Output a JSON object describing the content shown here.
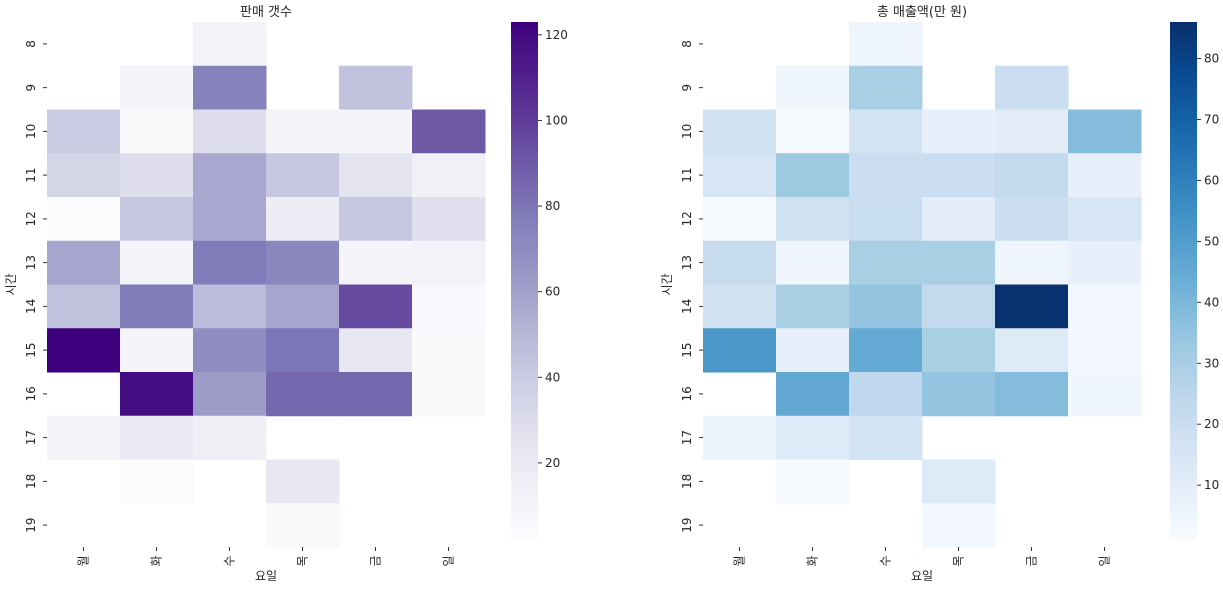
{
  "chart_data": [
    {
      "type": "heatmap",
      "title": "판매 갯수",
      "xlabel": "요일",
      "ylabel": "시간",
      "x_categories": [
        "월",
        "화",
        "수",
        "목",
        "금",
        "일"
      ],
      "y_categories": [
        "8",
        "9",
        "10",
        "11",
        "12",
        "13",
        "14",
        "15",
        "16",
        "17",
        "18",
        "19"
      ],
      "values": [
        [
          null,
          null,
          12,
          null,
          null,
          null
        ],
        [
          null,
          10,
          75,
          null,
          45,
          null
        ],
        [
          40,
          4,
          30,
          12,
          10,
          90
        ],
        [
          35,
          30,
          57,
          42,
          25,
          14
        ],
        [
          3,
          42,
          57,
          18,
          42,
          28
        ],
        [
          58,
          10,
          78,
          72,
          10,
          12
        ],
        [
          45,
          78,
          48,
          58,
          95,
          6
        ],
        [
          123,
          10,
          70,
          80,
          22,
          5
        ],
        [
          null,
          118,
          62,
          85,
          85,
          5
        ],
        [
          10,
          20,
          15,
          null,
          null,
          null
        ],
        [
          null,
          3,
          null,
          22,
          null,
          null
        ],
        [
          null,
          null,
          null,
          5,
          null,
          null
        ]
      ],
      "colormap": "Purples",
      "colorbar_range": [
        2,
        123
      ],
      "colorbar_ticks": [
        20,
        40,
        60,
        80,
        100,
        120
      ]
    },
    {
      "type": "heatmap",
      "title": "총 매출액(만 원)",
      "xlabel": "요일",
      "ylabel": "시간",
      "x_categories": [
        "월",
        "화",
        "수",
        "목",
        "금",
        "일"
      ],
      "y_categories": [
        "8",
        "9",
        "10",
        "11",
        "12",
        "13",
        "14",
        "15",
        "16",
        "17",
        "18",
        "19"
      ],
      "values": [
        [
          null,
          null,
          5,
          null,
          null,
          null
        ],
        [
          null,
          4,
          30,
          null,
          20,
          null
        ],
        [
          18,
          2,
          17,
          8,
          10,
          38
        ],
        [
          15,
          33,
          20,
          20,
          23,
          8
        ],
        [
          2,
          18,
          21,
          10,
          20,
          15
        ],
        [
          22,
          4,
          30,
          30,
          5,
          8
        ],
        [
          18,
          30,
          35,
          23,
          85,
          3
        ],
        [
          52,
          8,
          45,
          30,
          12,
          3
        ],
        [
          null,
          46,
          24,
          35,
          38,
          4
        ],
        [
          6,
          12,
          17,
          null,
          null,
          null
        ],
        [
          null,
          2,
          null,
          12,
          null,
          null
        ],
        [
          null,
          null,
          null,
          3,
          null,
          null
        ]
      ],
      "colormap": "Blues",
      "colorbar_range": [
        1,
        86
      ],
      "colorbar_ticks": [
        10,
        20,
        30,
        40,
        50,
        60,
        70,
        80
      ]
    }
  ]
}
